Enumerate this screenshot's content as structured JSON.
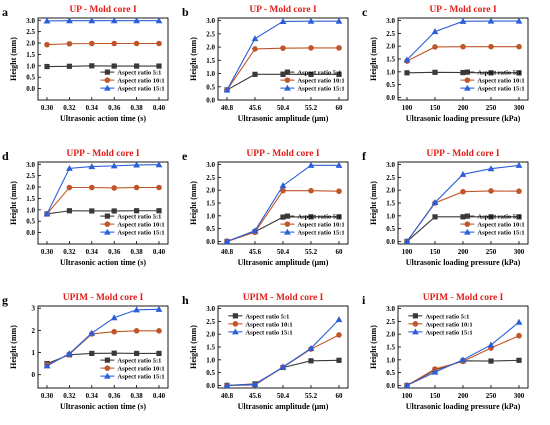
{
  "colors": {
    "aspect_5": "#3a3a3a",
    "aspect_10": "#c0562a",
    "aspect_15": "#2b5fd9",
    "title": "#e0201b",
    "axis": "#000000"
  },
  "series_names": [
    "Aspect ratio 5:1",
    "Aspect ratio 10:1",
    "Aspect ratio 15:1"
  ],
  "chart_data": [
    {
      "panel_label": "a",
      "type": "line",
      "title": "UP - Mold core I",
      "xlabel": "Ultrasonic action time (s)",
      "ylabel": "Height (mm)",
      "x": [
        "0.30",
        "0.32",
        "0.34",
        "0.36",
        "0.38",
        "0.40"
      ],
      "ylim": [
        -0.5,
        3.1
      ],
      "yticks": [
        "0.0",
        "0.5",
        "1.0",
        "1.5",
        "2.0",
        "2.5",
        "3.0"
      ],
      "series": [
        {
          "name": "Aspect ratio 5:1",
          "values": [
            0.97,
            0.98,
            1.0,
            0.99,
            0.99,
            0.99
          ]
        },
        {
          "name": "Aspect ratio 10:1",
          "values": [
            1.93,
            1.97,
            1.98,
            1.98,
            1.98,
            1.98
          ]
        },
        {
          "name": "Aspect ratio 15:1",
          "values": [
            2.97,
            2.98,
            2.98,
            2.98,
            2.98,
            2.98
          ]
        }
      ]
    },
    {
      "panel_label": "b",
      "type": "line",
      "title": "UP - Mold core I",
      "xlabel": "Ultrasonic amplitude (μm)",
      "ylabel": "Height (mm)",
      "x": [
        "40.8",
        "45.6",
        "50.4",
        "55.2",
        "60"
      ],
      "ylim": [
        0,
        3.1
      ],
      "yticks": [
        "0.0",
        "0.5",
        "1.0",
        "1.5",
        "2.0",
        "2.5",
        "3.0"
      ],
      "series": [
        {
          "name": "Aspect ratio 5:1",
          "values": [
            0.38,
            0.97,
            0.97,
            0.97,
            0.97
          ]
        },
        {
          "name": "Aspect ratio 10:1",
          "values": [
            0.38,
            1.93,
            1.96,
            1.97,
            1.97
          ]
        },
        {
          "name": "Aspect ratio 15:1",
          "values": [
            0.38,
            2.32,
            2.97,
            2.98,
            2.98
          ]
        }
      ]
    },
    {
      "panel_label": "c",
      "type": "line",
      "title": "UP - Mold core I",
      "xlabel": "Ultrasonic loading pressure (kPa)",
      "ylabel": "Height (mm)",
      "x": [
        "100",
        "150",
        "200",
        "250",
        "300"
      ],
      "ylim": [
        -0.1,
        3.1
      ],
      "yticks": [
        "0.0",
        "0.5",
        "1.0",
        "1.5",
        "2.0",
        "2.5",
        "3.0"
      ],
      "series": [
        {
          "name": "Aspect ratio 5:1",
          "values": [
            0.96,
            0.98,
            0.97,
            0.96,
            0.96
          ]
        },
        {
          "name": "Aspect ratio 10:1",
          "values": [
            1.42,
            1.97,
            1.98,
            1.98,
            1.98
          ]
        },
        {
          "name": "Aspect ratio 15:1",
          "values": [
            1.47,
            2.57,
            2.97,
            2.98,
            2.98
          ]
        }
      ]
    },
    {
      "panel_label": "d",
      "type": "line",
      "title": "UPP - Mold core I",
      "xlabel": "Ultrasonic action time (s)",
      "ylabel": "Height (mm)",
      "x": [
        "0.30",
        "0.32",
        "0.34",
        "0.36",
        "0.38",
        "0.40"
      ],
      "ylim": [
        -0.5,
        3.1
      ],
      "yticks": [
        "0.0",
        "0.5",
        "1.0",
        "1.5",
        "2.0",
        "2.5",
        "3.0"
      ],
      "series": [
        {
          "name": "Aspect ratio 5:1",
          "values": [
            0.82,
            0.96,
            0.95,
            0.95,
            0.96,
            0.96
          ]
        },
        {
          "name": "Aspect ratio 10:1",
          "values": [
            0.82,
            1.98,
            1.98,
            1.96,
            1.98,
            1.98
          ]
        },
        {
          "name": "Aspect ratio 15:1",
          "values": [
            0.82,
            2.82,
            2.9,
            2.93,
            2.97,
            2.98
          ]
        }
      ]
    },
    {
      "panel_label": "e",
      "type": "line",
      "title": "UPP - Mold core I",
      "xlabel": "Ultrasonic amplitude (μm)",
      "ylabel": "Height (mm)",
      "x": [
        "40.8",
        "45.6",
        "50.4",
        "55.2",
        "60"
      ],
      "ylim": [
        -0.1,
        3.1
      ],
      "yticks": [
        "0.0",
        "0.5",
        "1.0",
        "1.5",
        "2.0",
        "2.5",
        "3.0"
      ],
      "series": [
        {
          "name": "Aspect ratio 5:1",
          "values": [
            0.0,
            0.38,
            0.95,
            0.96,
            0.96
          ]
        },
        {
          "name": "Aspect ratio 10:1",
          "values": [
            0.0,
            0.36,
            1.98,
            1.98,
            1.96
          ]
        },
        {
          "name": "Aspect ratio 15:1",
          "values": [
            0.0,
            0.42,
            2.18,
            2.97,
            2.97
          ]
        }
      ]
    },
    {
      "panel_label": "f",
      "type": "line",
      "title": "UPP - Mold core I",
      "xlabel": "Ultrasonic loading pressure (kPa)",
      "ylabel": "Height (mm)",
      "x": [
        "100",
        "150",
        "200",
        "250",
        "300"
      ],
      "ylim": [
        -0.1,
        3.1
      ],
      "yticks": [
        "0.0",
        "0.5",
        "1.0",
        "1.5",
        "2.0",
        "2.5",
        "3.0"
      ],
      "series": [
        {
          "name": "Aspect ratio 5:1",
          "values": [
            0.0,
            0.96,
            0.96,
            0.96,
            0.96
          ]
        },
        {
          "name": "Aspect ratio 10:1",
          "values": [
            0.0,
            1.5,
            1.94,
            1.97,
            1.96
          ]
        },
        {
          "name": "Aspect ratio 15:1",
          "values": [
            0.0,
            1.52,
            2.62,
            2.84,
            2.97
          ]
        }
      ]
    },
    {
      "panel_label": "g",
      "type": "line",
      "title": "UPIM - Mold core I",
      "xlabel": "Ultrasonic action time (s)",
      "ylabel": "Height (mm)",
      "x": [
        "0.30",
        "0.32",
        "0.34",
        "0.36",
        "0.38",
        "0.40"
      ],
      "ylim": [
        -0.6,
        3.1
      ],
      "yticks": [
        "0",
        "1",
        "2",
        "3"
      ],
      "series": [
        {
          "name": "Aspect ratio 5:1",
          "values": [
            0.5,
            0.9,
            0.96,
            0.97,
            0.96,
            0.96
          ]
        },
        {
          "name": "Aspect ratio 10:1",
          "values": [
            0.45,
            0.92,
            1.84,
            1.94,
            1.98,
            1.98
          ]
        },
        {
          "name": "Aspect ratio 15:1",
          "values": [
            0.4,
            0.95,
            1.88,
            2.57,
            2.93,
            2.95
          ]
        }
      ]
    },
    {
      "panel_label": "h",
      "type": "line",
      "title": "UPIM - Mold core I",
      "xlabel": "Ultrasonic amplitude (μm)",
      "ylabel": "Height (mm)",
      "x": [
        "40.8",
        "45.6",
        "50.4",
        "55.2",
        "60"
      ],
      "ylim": [
        -0.1,
        3.1
      ],
      "yticks": [
        "0.0",
        "0.5",
        "1.0",
        "1.5",
        "2.0",
        "2.5",
        "3.0"
      ],
      "series": [
        {
          "name": "Aspect ratio 5:1",
          "values": [
            0.0,
            0.06,
            0.7,
            0.96,
            0.98
          ]
        },
        {
          "name": "Aspect ratio 10:1",
          "values": [
            0.0,
            0.02,
            0.71,
            1.42,
            1.97
          ]
        },
        {
          "name": "Aspect ratio 15:1",
          "values": [
            0.0,
            0.04,
            0.72,
            1.45,
            2.57
          ]
        }
      ]
    },
    {
      "panel_label": "i",
      "type": "line",
      "title": "UPIM - Mold core I",
      "xlabel": "Ultrasonic loading pressure (kPa)",
      "ylabel": "Height (mm)",
      "x": [
        "100",
        "150",
        "200",
        "250",
        "300"
      ],
      "ylim": [
        -0.1,
        3.1
      ],
      "yticks": [
        "0.0",
        "0.5",
        "1.0",
        "1.5",
        "2.0",
        "2.5",
        "3.0"
      ],
      "series": [
        {
          "name": "Aspect ratio 5:1",
          "values": [
            0.0,
            0.6,
            0.96,
            0.95,
            0.98
          ]
        },
        {
          "name": "Aspect ratio 10:1",
          "values": [
            0.0,
            0.64,
            0.94,
            1.46,
            1.94
          ]
        },
        {
          "name": "Aspect ratio 15:1",
          "values": [
            0.0,
            0.52,
            1.0,
            1.58,
            2.47
          ]
        }
      ]
    }
  ]
}
